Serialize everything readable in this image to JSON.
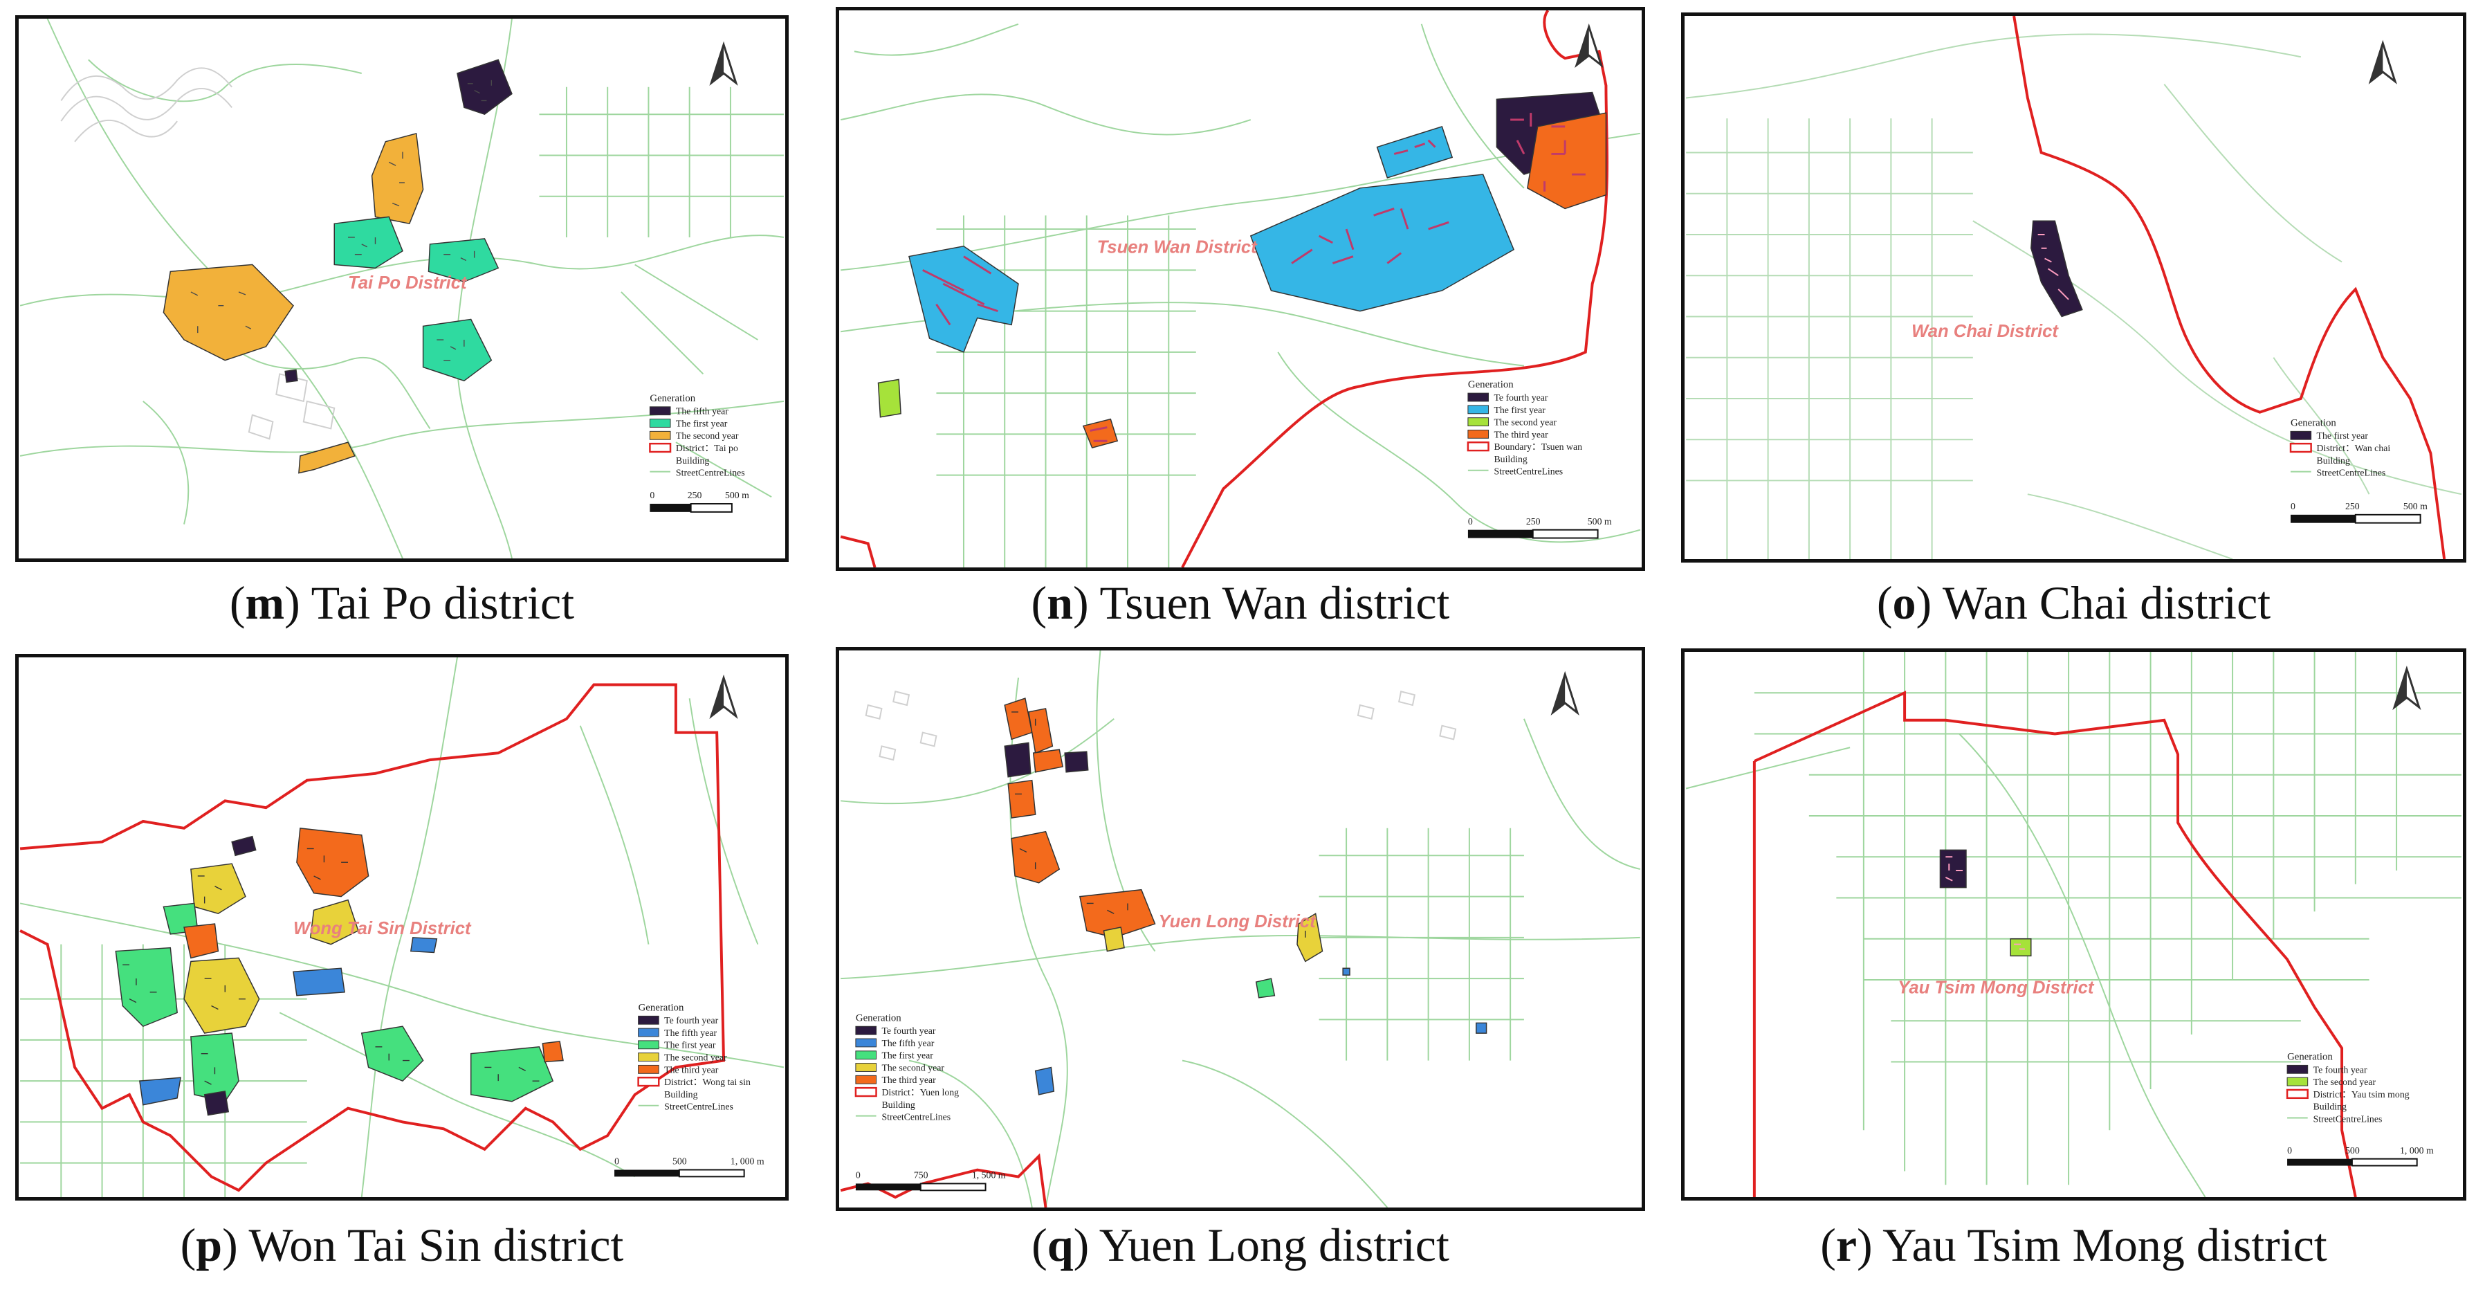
{
  "colors": {
    "fifth_year": "#2c1a3f",
    "fourth_year": "#2c1a3f",
    "first_year_teal": "#2fdaa0",
    "first_year_blue": "#35b6e6",
    "first_year_green": "#45e07e",
    "second_year_orange": "#f2b13a",
    "second_year_lime": "#a6e23a",
    "second_year_yellow": "#e8d23a",
    "third_year": "#f36a1c",
    "fifth_year_blue": "#3b86d9",
    "district_boundary": "#e02020",
    "street": "#8fd18f",
    "building": "#bdbdbd"
  },
  "panels": [
    {
      "key": "m",
      "caption_prefix": "(",
      "caption_letter": "m",
      "caption_text": ") Tai Po district",
      "district_label": "Tai Po District",
      "legend_title": "Generation",
      "legend": [
        {
          "swatch": "fifth_year",
          "label": "The fifth year"
        },
        {
          "swatch": "first_year_teal",
          "label": "The first year"
        },
        {
          "swatch": "second_year_orange",
          "label": "The second year"
        },
        {
          "swatch": "boundary",
          "label": "District：Tai po"
        },
        {
          "swatch": "none",
          "label": "Building"
        },
        {
          "swatch": "line",
          "label": "StreetCentreLines"
        }
      ],
      "scale": [
        "0",
        "250",
        "500 m"
      ]
    },
    {
      "key": "n",
      "caption_prefix": "(",
      "caption_letter": "n",
      "caption_text": ") Tsuen Wan district",
      "district_label": "Tsuen Wan District",
      "legend_title": "Generation",
      "legend": [
        {
          "swatch": "fourth_year",
          "label": "Te fourth year"
        },
        {
          "swatch": "first_year_blue",
          "label": "The first year"
        },
        {
          "swatch": "second_year_lime",
          "label": "The second year"
        },
        {
          "swatch": "third_year",
          "label": "The third year"
        },
        {
          "swatch": "boundary",
          "label": "Boundary：Tsuen wan"
        },
        {
          "swatch": "none",
          "label": "Building"
        },
        {
          "swatch": "line",
          "label": "StreetCentreLines"
        }
      ],
      "scale": [
        "0",
        "250",
        "500 m"
      ]
    },
    {
      "key": "o",
      "caption_prefix": "(",
      "caption_letter": "o",
      "caption_text": ") Wan Chai district",
      "district_label": "Wan Chai District",
      "legend_title": "Generation",
      "legend": [
        {
          "swatch": "fifth_year",
          "label": "The first year"
        },
        {
          "swatch": "boundary",
          "label": "District：Wan chai"
        },
        {
          "swatch": "none",
          "label": "Building"
        },
        {
          "swatch": "line",
          "label": "StreetCentreLines"
        }
      ],
      "scale": [
        "0",
        "250",
        "500 m"
      ]
    },
    {
      "key": "p",
      "caption_prefix": "(",
      "caption_letter": "p",
      "caption_text": ") Won Tai Sin district",
      "district_label": "Wong Tai Sin District",
      "legend_title": "Generation",
      "legend": [
        {
          "swatch": "fourth_year",
          "label": "Te fourth year"
        },
        {
          "swatch": "fifth_year_blue",
          "label": "The fifth year"
        },
        {
          "swatch": "first_year_green",
          "label": "The first year"
        },
        {
          "swatch": "second_year_yellow",
          "label": "The second year"
        },
        {
          "swatch": "third_year",
          "label": "The third year"
        },
        {
          "swatch": "boundary",
          "label": "District：Wong tai sin"
        },
        {
          "swatch": "none",
          "label": "Building"
        },
        {
          "swatch": "line",
          "label": "StreetCentreLines"
        }
      ],
      "scale": [
        "0",
        "500",
        "1, 000 m"
      ]
    },
    {
      "key": "q",
      "caption_prefix": "(",
      "caption_letter": "q",
      "caption_text": ") Yuen Long district",
      "district_label": "Yuen Long District",
      "legend_title": "Generation",
      "legend": [
        {
          "swatch": "fourth_year",
          "label": "Te fourth year"
        },
        {
          "swatch": "fifth_year_blue",
          "label": "The fifth year"
        },
        {
          "swatch": "first_year_green",
          "label": "The first year"
        },
        {
          "swatch": "second_year_yellow",
          "label": "The second year"
        },
        {
          "swatch": "third_year",
          "label": "The third year"
        },
        {
          "swatch": "boundary",
          "label": "District：Yuen long"
        },
        {
          "swatch": "none",
          "label": "Building"
        },
        {
          "swatch": "line",
          "label": "StreetCentreLines"
        }
      ],
      "scale": [
        "0",
        "750",
        "1, 500 m"
      ]
    },
    {
      "key": "r",
      "caption_prefix": "(",
      "caption_letter": "r",
      "caption_text": ") Yau Tsim Mong district",
      "district_label": "Yau Tsim Mong District",
      "legend_title": "Generation",
      "legend": [
        {
          "swatch": "fourth_year",
          "label": "Te fourth year"
        },
        {
          "swatch": "second_year_lime",
          "label": "The second year"
        },
        {
          "swatch": "boundary",
          "label": "District：Yau tsim mong"
        },
        {
          "swatch": "none",
          "label": "Building"
        },
        {
          "swatch": "line",
          "label": "StreetCentreLines"
        }
      ],
      "scale": [
        "0",
        "500",
        "1, 000 m"
      ]
    }
  ]
}
